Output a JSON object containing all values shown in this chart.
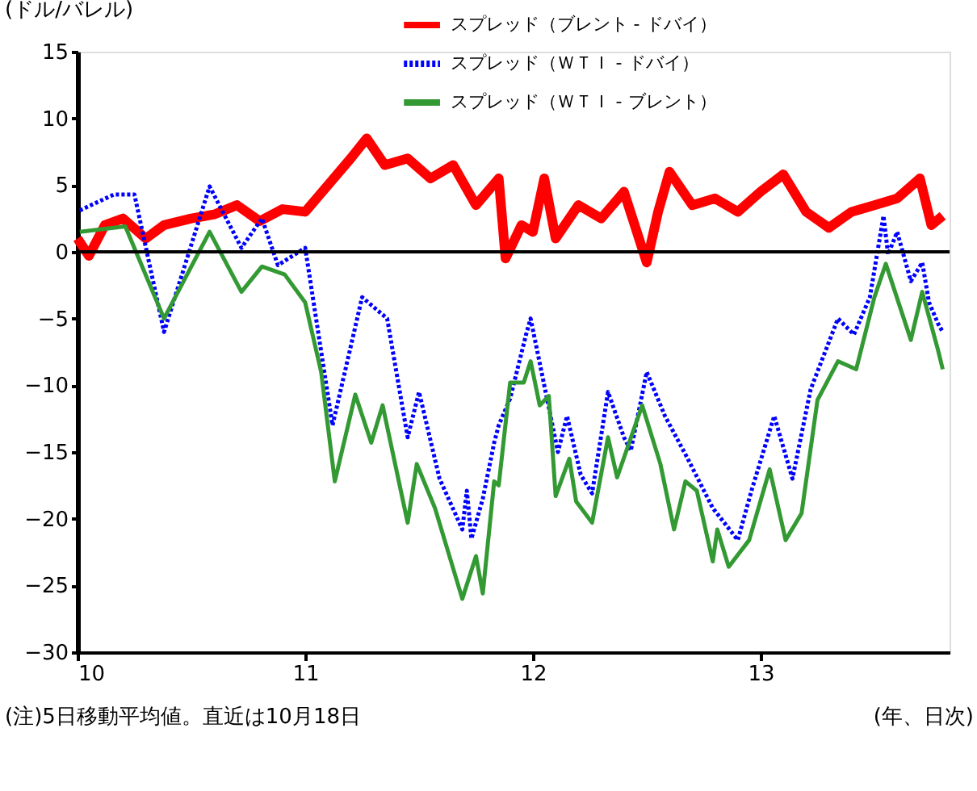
{
  "chart_data": {
    "type": "line",
    "ylabel": "(ドル/バレル)",
    "xlabel": "(年、日次)",
    "xlim": [
      10,
      13.83
    ],
    "xticks": [
      10,
      11,
      12,
      13
    ],
    "ylim": [
      -30,
      15
    ],
    "yticks": [
      -30,
      -25,
      -20,
      -15,
      -10,
      -5,
      0,
      5,
      10,
      15
    ],
    "grid": false,
    "legend": "top",
    "marker": "none",
    "ref_lines": [
      {
        "axis": "y",
        "value": 0,
        "color": "#000000"
      }
    ],
    "annotations": [
      "(注)5日移動平均値。直近は10月18日"
    ],
    "series": [
      {
        "name": "スプレッド（ブレント - ドバイ）",
        "color": "#ff0000",
        "line_style": "solid",
        "x": [
          10.0,
          10.05,
          10.12,
          10.2,
          10.3,
          10.38,
          10.5,
          10.6,
          10.7,
          10.8,
          10.9,
          11.0,
          11.1,
          11.2,
          11.27,
          11.35,
          11.45,
          11.55,
          11.65,
          11.75,
          11.85,
          11.88,
          11.95,
          12.0,
          12.05,
          12.1,
          12.2,
          12.3,
          12.4,
          12.5,
          12.55,
          12.6,
          12.7,
          12.8,
          12.9,
          13.0,
          13.1,
          13.2,
          13.3,
          13.4,
          13.5,
          13.6,
          13.7,
          13.75,
          13.8
        ],
        "values": [
          1.0,
          -0.3,
          2.0,
          2.5,
          1.0,
          2.0,
          2.5,
          2.8,
          3.5,
          2.3,
          3.2,
          3.0,
          5.0,
          7.0,
          8.5,
          6.5,
          7.0,
          5.5,
          6.5,
          3.5,
          5.5,
          -0.5,
          2.0,
          1.5,
          5.5,
          1.0,
          3.5,
          2.5,
          4.5,
          -0.8,
          3.0,
          6.0,
          3.5,
          4.0,
          3.0,
          4.5,
          5.8,
          3.0,
          1.8,
          3.0,
          3.5,
          4.0,
          5.5,
          2.0,
          2.7
        ]
      },
      {
        "name": "スプレッド（ＷＴＩ - ドバイ）",
        "color": "#0000ff",
        "line_style": "dotted",
        "x": [
          10.01,
          10.16,
          10.25,
          10.38,
          10.58,
          10.72,
          10.81,
          10.88,
          11.0,
          11.12,
          11.25,
          11.36,
          11.45,
          11.5,
          11.59,
          11.69,
          11.71,
          11.73,
          11.78,
          11.83,
          11.85,
          11.9,
          11.97,
          11.99,
          12.11,
          12.15,
          12.21,
          12.26,
          12.33,
          12.4,
          12.43,
          12.5,
          12.58,
          12.68,
          12.79,
          12.9,
          12.96,
          13.06,
          13.14,
          13.22,
          13.34,
          13.41,
          13.48,
          13.54,
          13.56,
          13.6,
          13.66,
          13.71,
          13.74,
          13.78,
          13.8
        ],
        "values": [
          3.1,
          4.3,
          4.3,
          -6,
          4.9,
          0.3,
          2.5,
          -1,
          0.3,
          -13,
          -3.4,
          -5,
          -13.9,
          -10.5,
          -17,
          -20.8,
          -17.9,
          -21.5,
          -18.5,
          -14.3,
          -13,
          -11,
          -6.2,
          -5,
          -15,
          -12.3,
          -16.7,
          -18.1,
          -10.5,
          -13.9,
          -14.9,
          -9,
          -12.3,
          -15.5,
          -19.2,
          -21.6,
          -17.9,
          -12.3,
          -17,
          -10.3,
          -5,
          -6.2,
          -3.4,
          2.7,
          -0.2,
          1.5,
          -2.2,
          -0.8,
          -3.8,
          -5.4,
          -6
        ]
      },
      {
        "name": "スプレッド（ＷＴＩ - ブレント）",
        "color": "#339933",
        "line_style": "solid",
        "x": [
          10.01,
          10.21,
          10.38,
          10.58,
          10.72,
          10.81,
          10.91,
          11.0,
          11.07,
          11.13,
          11.22,
          11.29,
          11.34,
          11.45,
          11.49,
          11.57,
          11.69,
          11.75,
          11.78,
          11.83,
          11.85,
          11.9,
          11.96,
          11.99,
          12.03,
          12.07,
          12.1,
          12.16,
          12.19,
          12.26,
          12.33,
          12.37,
          12.48,
          12.56,
          12.62,
          12.67,
          12.72,
          12.79,
          12.81,
          12.86,
          12.95,
          13.04,
          13.11,
          13.18,
          13.25,
          13.34,
          13.42,
          13.5,
          13.55,
          13.66,
          13.71,
          13.78,
          13.8
        ],
        "values": [
          1.5,
          1.9,
          -5,
          1.5,
          -3,
          -1.1,
          -1.7,
          -3.8,
          -9,
          -17.2,
          -10.7,
          -14.3,
          -11.5,
          -20.3,
          -15.9,
          -19.2,
          -26,
          -22.8,
          -25.6,
          -17.2,
          -17.5,
          -9.8,
          -9.8,
          -8.2,
          -11.5,
          -10.8,
          -18.3,
          -15.5,
          -18.7,
          -20.3,
          -13.9,
          -16.9,
          -11.5,
          -15.9,
          -20.8,
          -17.2,
          -17.9,
          -23.2,
          -20.8,
          -23.6,
          -21.6,
          -16.3,
          -21.6,
          -19.6,
          -11.1,
          -8.2,
          -8.8,
          -3.4,
          -0.9,
          -6.6,
          -3,
          -7.4,
          -8.8
        ]
      }
    ]
  }
}
